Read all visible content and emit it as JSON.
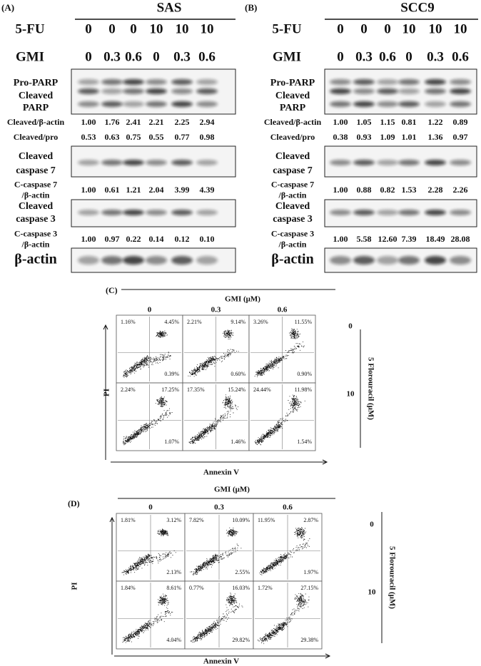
{
  "blot_panels": [
    {
      "label": "(A)",
      "cell_line": "SAS",
      "treatments": [
        {
          "name": "5-FU",
          "values": [
            "0",
            "0",
            "0",
            "10",
            "10",
            "10"
          ]
        },
        {
          "name": "GMI",
          "values": [
            "0",
            "0.3",
            "0.6",
            "0",
            "0.3",
            "0.6"
          ]
        }
      ],
      "blots": [
        {
          "labels": [
            "Pro-PARP",
            "Cleaved",
            "PARP"
          ]
        },
        {
          "labels": [
            "Cleaved",
            "caspase 7"
          ]
        },
        {
          "labels": [
            "Cleaved",
            "caspase 3"
          ]
        },
        {
          "labels": [
            "β-actin"
          ]
        }
      ],
      "quant": [
        {
          "labels": [
            "Cleaved/β-actin"
          ],
          "values": [
            "1.00",
            "1.76",
            "2.41",
            "2.21",
            "2.25",
            "2.94"
          ]
        },
        {
          "labels": [
            "Cleaved/pro"
          ],
          "values": [
            "0.53",
            "0.63",
            "0.75",
            "0.55",
            "0.77",
            "0.98"
          ]
        },
        {
          "labels": [
            "C-caspase 7",
            "/β-actin"
          ],
          "values": [
            "1.00",
            "0.61",
            "1.21",
            "2.04",
            "3.99",
            "4.39"
          ]
        },
        {
          "labels": [
            "C-caspase 3",
            "/β-actin"
          ],
          "values": [
            "1.00",
            "0.97",
            "0.22",
            "0.14",
            "0.12",
            "0.10"
          ]
        }
      ]
    },
    {
      "label": "(B)",
      "cell_line": "SCC9",
      "treatments": [
        {
          "name": "5-FU",
          "values": [
            "0",
            "0",
            "0",
            "10",
            "10",
            "10"
          ]
        },
        {
          "name": "GMI",
          "values": [
            "0",
            "0.3",
            "0.6",
            "0",
            "0.3",
            "0.6"
          ]
        }
      ],
      "blots": [
        {
          "labels": [
            "Pro-PARP",
            "Cleaved",
            "PARP"
          ]
        },
        {
          "labels": [
            "Cleaved",
            "caspase 7"
          ]
        },
        {
          "labels": [
            "Cleaved",
            "caspase 3"
          ]
        },
        {
          "labels": [
            "β-actin"
          ]
        }
      ],
      "quant": [
        {
          "labels": [
            "Cleaved/β-actin"
          ],
          "values": [
            "1.00",
            "1.05",
            "1.15",
            "0.81",
            "1.22",
            "0.89"
          ]
        },
        {
          "labels": [
            "Cleaved/pro"
          ],
          "values": [
            "0.38",
            "0.93",
            "1.09",
            "1.01",
            "1.36",
            "0.97"
          ]
        },
        {
          "labels": [
            "C-caspase 7",
            "/β-actin"
          ],
          "values": [
            "1.00",
            "0.88",
            "0.82",
            "1.53",
            "2.28",
            "2.26"
          ]
        },
        {
          "labels": [
            "C-caspase 3",
            "/β-actin"
          ],
          "values": [
            "1.00",
            "5.58",
            "12.60",
            "7.39",
            "18.49",
            "28.08"
          ]
        }
      ]
    }
  ],
  "flow_panels": [
    {
      "label": "(C)",
      "title": "GMI (μM)",
      "columns": [
        "0",
        "0.3",
        "0.6"
      ],
      "rows": [
        "0",
        "10"
      ],
      "row_title": "5 Florouracil (μM)",
      "y_label": "PI",
      "x_label": "Annexin V",
      "quadrants": [
        [
          [
            "1.16%",
            "4.45%",
            "0.39%"
          ],
          [
            "2.21%",
            "9.14%",
            "0.60%"
          ],
          [
            "3.26%",
            "11.55%",
            "0.90%"
          ]
        ],
        [
          [
            "2.24%",
            "17.25%",
            "1.07%"
          ],
          [
            "17.35%",
            "15.24%",
            "1.46%"
          ],
          [
            "24.44%",
            "11.98%",
            "1.54%"
          ]
        ]
      ]
    },
    {
      "label": "(D)",
      "title": "GMI (μM)",
      "columns": [
        "0",
        "0.3",
        "0.6"
      ],
      "rows": [
        "0",
        "10"
      ],
      "row_title": "5 Florouracil (μM)",
      "y_label": "PI",
      "x_label": "Annexin V",
      "quadrants": [
        [
          [
            "1.81%",
            "3.12%",
            "2.13%"
          ],
          [
            "7.82%",
            "10.09%",
            "2.55%"
          ],
          [
            "11.95%",
            "2.87%",
            "1.97%"
          ]
        ],
        [
          [
            "1.84%",
            "8.61%",
            "4.04%"
          ],
          [
            "0.77%",
            "16.03%",
            "29.82%"
          ],
          [
            "1.72%",
            "27.15%",
            "29.38%"
          ]
        ]
      ]
    }
  ]
}
